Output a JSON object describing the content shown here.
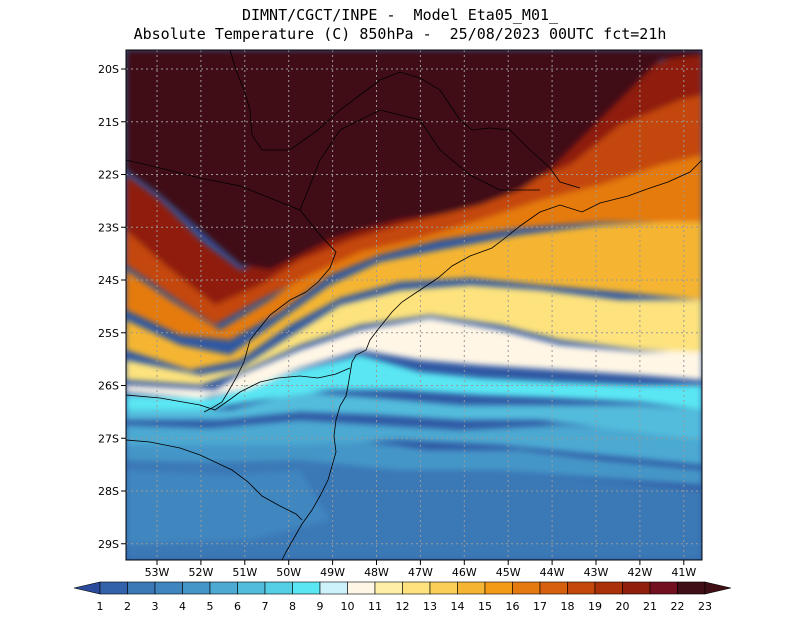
{
  "header": {
    "line1": "DIMNT/CGCT/INPE -  Model Eta05_M01_",
    "line2": "Absolute Temperature (C) 850hPa -  25/08/2023 00UTC fct=21h"
  },
  "axes": {
    "lat_labels": [
      "20S",
      "21S",
      "22S",
      "23S",
      "24S",
      "25S",
      "26S",
      "27S",
      "28S",
      "29S"
    ],
    "lon_labels": [
      "53W",
      "52W",
      "51W",
      "50W",
      "49W",
      "48W",
      "47W",
      "46W",
      "45W",
      "44W",
      "43W",
      "42W",
      "41W"
    ]
  },
  "colorbar": {
    "labels": [
      "1",
      "2",
      "3",
      "4",
      "5",
      "6",
      "7",
      "8",
      "9",
      "10",
      "11",
      "12",
      "13",
      "14",
      "15",
      "16",
      "17",
      "18",
      "19",
      "20",
      "21",
      "22",
      "23"
    ],
    "colors": [
      "#2a4b9b",
      "#3262a9",
      "#3a78b6",
      "#3f86bf",
      "#4596c8",
      "#4ba9d2",
      "#52bcdc",
      "#55cfe6",
      "#5ae6f3",
      "#cdf2fb",
      "#fff6e5",
      "#fff0a8",
      "#fde27d",
      "#f9cf57",
      "#f5b532",
      "#f39b14",
      "#e57a10",
      "#d7600e",
      "#c4470b",
      "#ab3208",
      "#8f1f0c",
      "#721020",
      "#3f0f15"
    ]
  }
}
